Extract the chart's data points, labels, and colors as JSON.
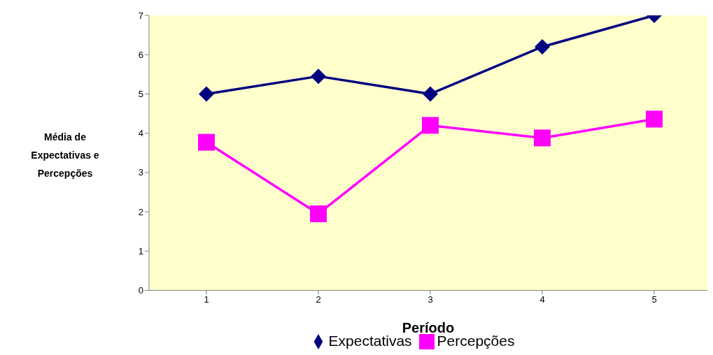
{
  "chart_data": {
    "type": "line",
    "xlabel": "Período",
    "ylabel": "Média de Expectativas e Percepções",
    "categories": [
      "1",
      "2",
      "3",
      "4",
      "5"
    ],
    "series": [
      {
        "name": "Expectativas",
        "color": "#000080",
        "marker": "diamond",
        "values": [
          5,
          5.45,
          5,
          6.2,
          7
        ]
      },
      {
        "name": "Percepções",
        "color": "#ff00ff",
        "marker": "square",
        "values": [
          3.77,
          1.95,
          4.2,
          3.88,
          4.36
        ]
      }
    ],
    "ylim": [
      0,
      7
    ],
    "yticks": [
      0,
      1,
      2,
      3,
      4,
      5,
      6,
      7
    ],
    "legend": "bottom",
    "line_style": "solid"
  }
}
